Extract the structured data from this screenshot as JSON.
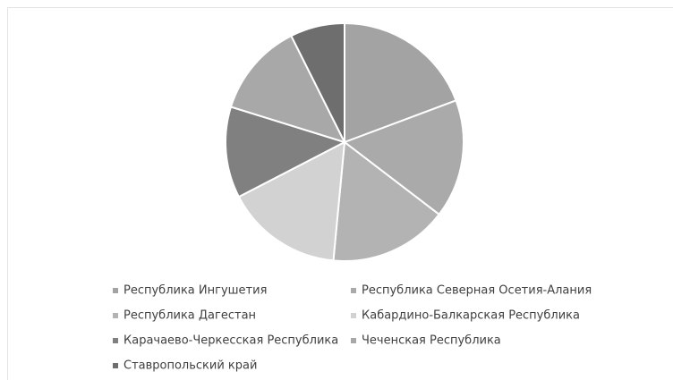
{
  "chart_data": {
    "type": "pie",
    "categories": [
      "Республика Ингушетия",
      "Республика Северная Осетия-Алания",
      "Республика Дагестан",
      "Кабардино-Балкарская Республика",
      "Карачаево-Черкесская Республика",
      "Чеченская Республика",
      "Ставропольский край"
    ],
    "values": [
      19.3,
      16.1,
      16.1,
      15.9,
      12.4,
      12.8,
      7.4
    ],
    "colors": [
      "#a3a3a3",
      "#aaaaaa",
      "#b3b3b3",
      "#d2d2d2",
      "#808080",
      "#a8a8a8",
      "#6e6e6e"
    ],
    "legend": "bottom"
  }
}
